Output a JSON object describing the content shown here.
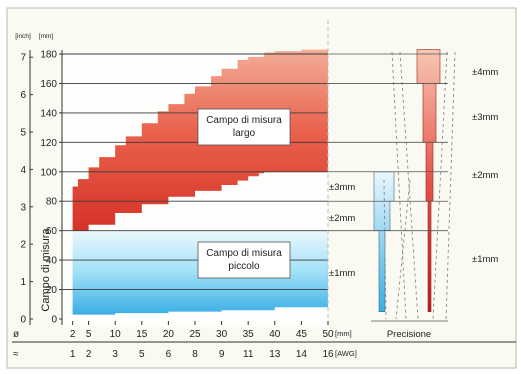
{
  "chart_data": {
    "type": "area",
    "yaxis_left_inner": {
      "unit": "[mm]",
      "ticks": [
        0,
        20,
        40,
        60,
        80,
        100,
        120,
        140,
        160,
        180
      ],
      "range": [
        0,
        180
      ]
    },
    "yaxis_left_outer": {
      "unit": "[inch]",
      "ticks": [
        0,
        1,
        2,
        3,
        4,
        5,
        6,
        7
      ]
    },
    "ylabel": "Campo di misura",
    "xaxis_bottom": {
      "prefix": "ø",
      "unit": "[mm]",
      "ticks": [
        2,
        5,
        10,
        15,
        20,
        25,
        30,
        35,
        40,
        45,
        50
      ],
      "range": [
        0,
        50
      ]
    },
    "xaxis_bottom2": {
      "prefix": "≈",
      "unit": "[AWG]",
      "ticks": [
        1,
        2,
        3,
        5,
        6,
        8,
        9,
        11,
        13,
        14,
        16
      ]
    },
    "regions": [
      {
        "label_lines": [
          "Campo di misura",
          "largo"
        ],
        "color_top": "#e9624d",
        "color_bottom": "#d63228",
        "upper": [
          [
            2,
            90
          ],
          [
            3,
            95
          ],
          [
            5,
            103
          ],
          [
            7,
            110
          ],
          [
            10,
            118
          ],
          [
            12,
            124
          ],
          [
            15,
            133
          ],
          [
            18,
            141
          ],
          [
            20,
            146
          ],
          [
            23,
            153
          ],
          [
            25,
            158
          ],
          [
            28,
            165
          ],
          [
            30,
            170
          ],
          [
            33,
            176
          ],
          [
            35,
            178
          ],
          [
            38,
            181
          ],
          [
            40,
            182
          ],
          [
            45,
            183
          ],
          [
            50,
            183
          ]
        ],
        "lower": [
          [
            2,
            60
          ],
          [
            5,
            64
          ],
          [
            10,
            72
          ],
          [
            15,
            78
          ],
          [
            20,
            83
          ],
          [
            25,
            87
          ],
          [
            30,
            91
          ],
          [
            33,
            94
          ],
          [
            35,
            97
          ],
          [
            37,
            99
          ],
          [
            38,
            100
          ],
          [
            50,
            100
          ]
        ]
      },
      {
        "label_lines": [
          "Campo di misura",
          "piccolo"
        ],
        "color_top": "#7fd6f4",
        "color_bottom": "#3aaee4",
        "upper": [
          [
            2,
            60
          ],
          [
            50,
            60
          ]
        ],
        "lower": [
          [
            2,
            3
          ],
          [
            10,
            4
          ],
          [
            20,
            5
          ],
          [
            30,
            6
          ],
          [
            40,
            8
          ],
          [
            50,
            10
          ]
        ]
      }
    ],
    "precision": {
      "title": "Precisione",
      "labels": [
        "±4mm",
        "±3mm",
        "±2mm",
        "±1mm",
        "±3mm",
        "±2mm",
        "±1mm"
      ]
    }
  }
}
